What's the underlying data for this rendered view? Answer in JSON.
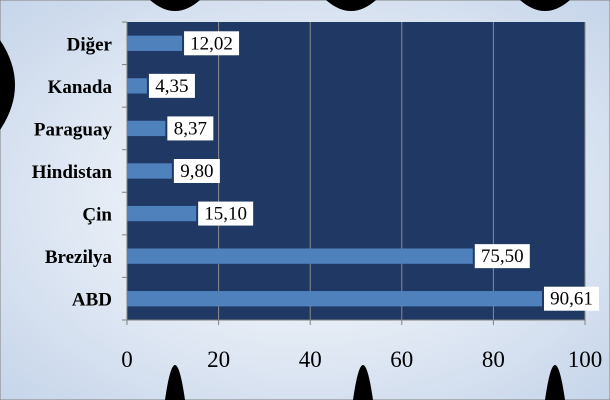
{
  "chart_data": {
    "type": "bar",
    "orientation": "horizontal",
    "categories": [
      "Diğer",
      "Kanada",
      "Paraguay",
      "Hindistan",
      "Çin",
      "Brezilya",
      "ABD"
    ],
    "values": [
      12.02,
      4.35,
      8.37,
      9.8,
      15.1,
      75.5,
      90.61
    ],
    "data_labels": [
      "12,02",
      "4,35",
      "8,37",
      "9,80",
      "15,10",
      "75,50",
      "90,61"
    ],
    "xlim": [
      0,
      100
    ],
    "x_ticks": [
      0,
      20,
      40,
      60,
      80,
      100
    ],
    "grid": "vertical",
    "title": "",
    "xlabel": "",
    "ylabel": "",
    "colors": {
      "plot_background": "#1f3864",
      "bar": "#4f81bd",
      "label_box": "#ffffff",
      "page_background": "#dde6f2"
    }
  }
}
